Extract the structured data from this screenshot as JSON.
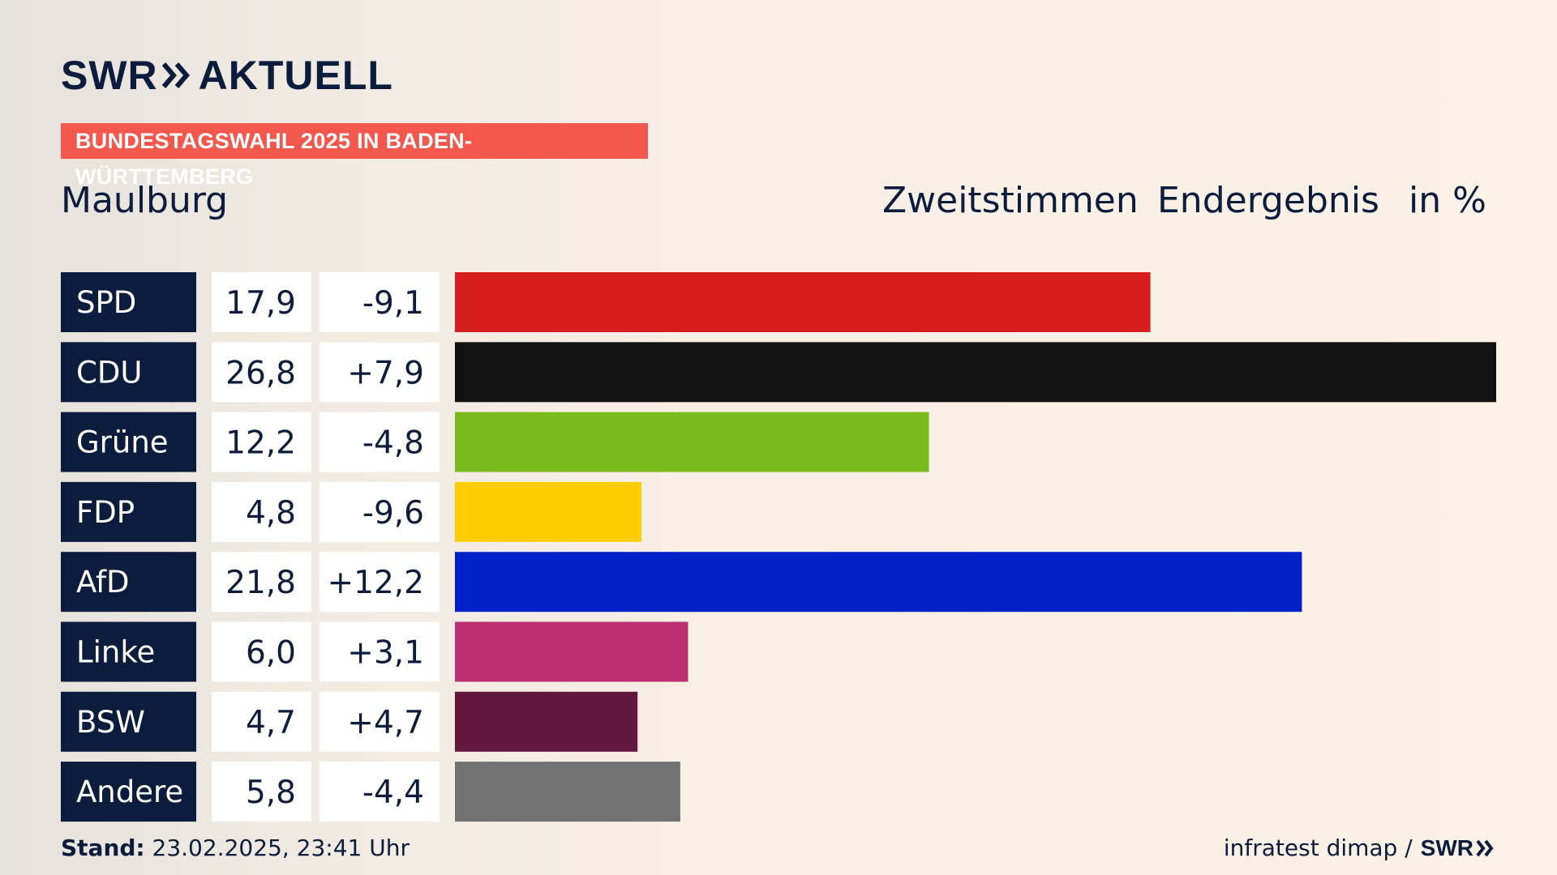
{
  "header": {
    "logo_left": "SWR",
    "logo_right": "AKTUELL",
    "logo_chevron_icon": "double-chevron-icon",
    "banner": "BUNDESTAGSWAHL 2025 IN BADEN-WÜRTTEMBERG",
    "place": "Maulburg",
    "col1": "Zweitstimmen",
    "col2": "Endergebnis",
    "col3": "in %"
  },
  "colors": {
    "label_bg": "#0b1c3c",
    "value_bg": "#ffffff",
    "banner_bg": "#f4574b"
  },
  "chart_data": {
    "type": "bar",
    "orientation": "horizontal",
    "categories": [
      "SPD",
      "CDU",
      "Grüne",
      "FDP",
      "AfD",
      "Linke",
      "BSW",
      "Andere"
    ],
    "values": [
      17.9,
      26.8,
      12.2,
      4.8,
      21.8,
      6.0,
      4.7,
      5.8
    ],
    "value_labels": [
      "17,9",
      "26,8",
      "12,2",
      "4,8",
      "21,8",
      "6,0",
      "4,7",
      "5,8"
    ],
    "changes": [
      -9.1,
      7.9,
      -4.8,
      -9.6,
      12.2,
      3.1,
      4.7,
      -4.4
    ],
    "change_labels": [
      "-9,1",
      "+7,9",
      "-4,8",
      "-9,6",
      "+12,2",
      "+3,1",
      "+4,7",
      "-4,4"
    ],
    "colors": [
      "#d71f1f",
      "#121212",
      "#7aba1c",
      "#ffcc00",
      "#0021c9",
      "#bb3072",
      "#64173c",
      "#727272"
    ],
    "xlim": [
      0,
      26.8
    ],
    "grid": false
  },
  "footer": {
    "stand_label": "Stand:",
    "stand_value": " 23.02.2025, 23:41 Uhr",
    "source": "infratest dimap /",
    "source_logo": "SWR"
  }
}
